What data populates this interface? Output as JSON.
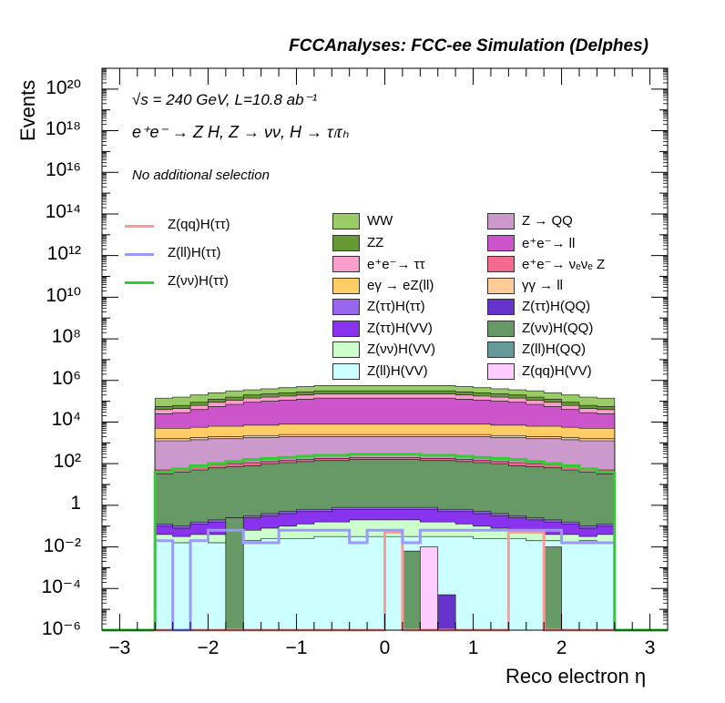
{
  "header": "FCCAnalyses: FCC-ee Simulation (Delphes)",
  "annotations": {
    "energy": "√s = 240 GeV, L=10.8 ab⁻¹",
    "process": "e⁺e⁻ → Z H, Z → νν, H → τₗτₕ",
    "selection": "No additional selection"
  },
  "colors": {
    "WW": "#99cc66",
    "ZZ": "#669933",
    "ee_tautau": "#f99fcb",
    "ee_ll": "#cc55cc",
    "ZQQ": "#cc99cc",
    "ee_nunuZ": "#f36a8e",
    "egamma": "#ffcc66",
    "gammagamma": "#ffcc99",
    "Z_tautau_H_tautau": "#9966ee",
    "Z_tautau_H_QQ": "#6633cc",
    "Z_tautau_H_VV": "#8833ee",
    "Z_nunu_H_QQ": "#669966",
    "Z_nunu_H_VV": "#ccffcc",
    "Z_ll_H_QQ": "#669999",
    "Z_ll_H_VV": "#ccffff",
    "Z_qq_H_VV": "#ffccff",
    "sig_qq": "#ff9999",
    "sig_ll": "#9999ff",
    "sig_nunu": "#33cc33"
  },
  "chart_data": {
    "type": "histogram",
    "title": "FCCAnalyses: FCC-ee Simulation (Delphes)",
    "xlabel": "Reco electron η",
    "ylabel": "Events",
    "xlim": [
      -3.2,
      3.2
    ],
    "ylim_log10": [
      -6,
      21
    ],
    "log_y": true,
    "x_ticks": [
      "−3",
      "−2",
      "−1",
      "0",
      "1",
      "2",
      "3"
    ],
    "y_ticks": [
      "10⁻⁶",
      "10⁻⁴",
      "10⁻²",
      "1",
      "10²",
      "10⁴",
      "10⁶",
      "10⁸",
      "10¹⁰",
      "10¹²",
      "10¹⁴",
      "10¹⁶",
      "10¹⁸",
      "10²⁰"
    ],
    "bin_edges": [
      -2.6,
      -2.4,
      -2.2,
      -2.0,
      -1.8,
      -1.6,
      -1.4,
      -1.2,
      -1.0,
      -0.8,
      -0.6,
      -0.4,
      -0.2,
      0.0,
      0.2,
      0.4,
      0.6,
      0.8,
      1.0,
      1.2,
      1.4,
      1.6,
      1.8,
      2.0,
      2.2,
      2.4,
      2.6
    ],
    "stack_boundaries_log10": [
      {
        "name": "Z(ll)H(VV)",
        "color_key": "Z_ll_H_VV",
        "values": [
          -1.7,
          -1.8,
          -1.7,
          -1.8,
          -1.7,
          -1.7,
          -1.6,
          -1.6,
          -1.6,
          -1.5,
          -1.5,
          -1.5,
          -1.5,
          -1.5,
          -1.5,
          -1.5,
          -1.5,
          -1.5,
          -1.6,
          -1.6,
          -1.6,
          -1.7,
          -1.7,
          -1.8,
          -1.7,
          -1.8
        ]
      },
      {
        "name": "Z(νν)H(VV)",
        "color_key": "Z_nunu_H_VV",
        "values": [
          -1.4,
          -1.5,
          -1.4,
          -1.4,
          -1.3,
          -1.2,
          -1.1,
          -1.0,
          -0.9,
          -0.8,
          -0.8,
          -0.7,
          -0.7,
          -0.7,
          -0.7,
          -0.8,
          -0.8,
          -0.9,
          -1.0,
          -1.1,
          -1.2,
          -1.3,
          -1.4,
          -1.4,
          -1.5,
          -1.4
        ]
      },
      {
        "name": "Z(ττ)H(VV)",
        "color_key": "Z_tautau_H_VV",
        "values": [
          -1.0,
          -1.1,
          -0.9,
          -0.8,
          -0.7,
          -0.6,
          -0.5,
          -0.4,
          -0.3,
          -0.3,
          -0.2,
          -0.2,
          -0.2,
          -0.2,
          -0.2,
          -0.2,
          -0.3,
          -0.3,
          -0.4,
          -0.5,
          -0.6,
          -0.7,
          -0.8,
          -0.9,
          -1.1,
          -1.0
        ]
      },
      {
        "name": "Z(ττ)H(ττ)",
        "color_key": "Z_tautau_H_tautau",
        "values": [
          -0.9,
          -1.0,
          -0.8,
          -0.7,
          -0.6,
          -0.5,
          -0.4,
          -0.3,
          -0.2,
          -0.2,
          -0.1,
          -0.1,
          -0.1,
          -0.1,
          -0.1,
          -0.1,
          -0.2,
          -0.2,
          -0.3,
          -0.4,
          -0.5,
          -0.6,
          -0.7,
          -0.8,
          -1.0,
          -0.9
        ]
      },
      {
        "name": "Z(νν)H(QQ)",
        "color_key": "Z_nunu_H_QQ",
        "values": [
          1.5,
          1.6,
          1.7,
          1.8,
          1.85,
          1.9,
          2.0,
          2.05,
          2.1,
          2.15,
          2.15,
          2.2,
          2.2,
          2.2,
          2.2,
          2.15,
          2.15,
          2.1,
          2.05,
          2.0,
          1.9,
          1.85,
          1.8,
          1.7,
          1.6,
          1.5
        ]
      },
      {
        "name": "e⁺e⁻→ νₑνₑ Z",
        "color_key": "ee_nunuZ",
        "values": [
          1.7,
          1.75,
          1.85,
          1.95,
          2.0,
          2.05,
          2.1,
          2.15,
          2.2,
          2.25,
          2.25,
          2.3,
          2.3,
          2.3,
          2.3,
          2.25,
          2.25,
          2.2,
          2.15,
          2.1,
          2.05,
          2.0,
          1.95,
          1.85,
          1.75,
          1.7
        ]
      },
      {
        "name": "Z → QQ",
        "color_key": "ZQQ",
        "values": [
          3.1,
          3.1,
          3.15,
          3.2,
          3.2,
          3.25,
          3.25,
          3.3,
          3.3,
          3.3,
          3.3,
          3.3,
          3.3,
          3.3,
          3.3,
          3.3,
          3.3,
          3.3,
          3.3,
          3.25,
          3.25,
          3.2,
          3.2,
          3.15,
          3.1,
          3.1
        ]
      },
      {
        "name": "γγ → ll",
        "color_key": "gammagamma",
        "values": [
          3.2,
          3.2,
          3.25,
          3.3,
          3.3,
          3.35,
          3.35,
          3.4,
          3.4,
          3.4,
          3.4,
          3.4,
          3.4,
          3.4,
          3.4,
          3.4,
          3.4,
          3.4,
          3.4,
          3.35,
          3.35,
          3.3,
          3.3,
          3.25,
          3.2,
          3.2
        ]
      },
      {
        "name": "eγ → eZ(ll)",
        "color_key": "egamma",
        "values": [
          3.7,
          3.7,
          3.75,
          3.8,
          3.8,
          3.85,
          3.85,
          3.9,
          3.9,
          3.9,
          3.9,
          3.9,
          3.9,
          3.9,
          3.9,
          3.9,
          3.9,
          3.9,
          3.9,
          3.85,
          3.85,
          3.8,
          3.8,
          3.75,
          3.7,
          3.7
        ]
      },
      {
        "name": "e⁺e⁻→ ll",
        "color_key": "ee_ll",
        "values": [
          4.4,
          4.45,
          4.6,
          4.75,
          4.85,
          4.95,
          5.0,
          5.05,
          5.1,
          5.15,
          5.15,
          5.15,
          5.15,
          5.15,
          5.15,
          5.15,
          5.15,
          5.1,
          5.05,
          5.0,
          4.95,
          4.85,
          4.75,
          4.6,
          4.45,
          4.4
        ]
      },
      {
        "name": "e⁺e⁻→ ττ",
        "color_key": "ee_tautau",
        "values": [
          4.6,
          4.65,
          4.8,
          4.95,
          5.05,
          5.15,
          5.2,
          5.25,
          5.3,
          5.35,
          5.35,
          5.35,
          5.35,
          5.35,
          5.35,
          5.35,
          5.35,
          5.3,
          5.25,
          5.2,
          5.15,
          5.05,
          4.95,
          4.8,
          4.65,
          4.6
        ]
      },
      {
        "name": "ZZ",
        "color_key": "ZZ",
        "values": [
          4.75,
          4.8,
          4.95,
          5.1,
          5.2,
          5.3,
          5.35,
          5.4,
          5.45,
          5.5,
          5.5,
          5.5,
          5.5,
          5.5,
          5.5,
          5.5,
          5.5,
          5.45,
          5.4,
          5.35,
          5.3,
          5.2,
          5.1,
          4.95,
          4.8,
          4.75
        ]
      },
      {
        "name": "WW",
        "color_key": "WW",
        "values": [
          5.15,
          5.2,
          5.3,
          5.4,
          5.5,
          5.55,
          5.6,
          5.65,
          5.7,
          5.75,
          5.75,
          5.75,
          5.75,
          5.75,
          5.75,
          5.75,
          5.75,
          5.7,
          5.65,
          5.6,
          5.55,
          5.5,
          5.4,
          5.3,
          5.2,
          5.15
        ]
      }
    ],
    "spikes": [
      {
        "name": "Z(νν)H(QQ)",
        "color_key": "Z_nunu_H_QQ",
        "x": [
          -1.8,
          -1.6
        ],
        "log10_top": -0.6
      },
      {
        "name": "Z(νν)H(QQ)",
        "color_key": "Z_nunu_H_QQ",
        "x": [
          0.2,
          0.4
        ],
        "log10_top": -2.2
      },
      {
        "name": "Z(νν)H(QQ)",
        "color_key": "Z_nunu_H_QQ",
        "x": [
          1.8,
          2.0
        ],
        "log10_top": -2.0
      },
      {
        "name": "Z(qq)H(VV)",
        "color_key": "Z_qq_H_VV",
        "x": [
          0.4,
          0.6
        ],
        "log10_top": -2.0
      },
      {
        "name": "Z(ττ)H(QQ)",
        "color_key": "Z_tautau_H_QQ",
        "x": [
          0.6,
          0.8
        ],
        "log10_top": -4.3
      }
    ],
    "overlay_lines": [
      {
        "name": "Z(qq)H(ττ)",
        "color_key": "sig_qq",
        "values": [
          -6.2,
          -6.2,
          -6.2,
          -6.2,
          -6.2,
          -6.2,
          -6.2,
          -6.2,
          -6.2,
          -6.2,
          -6.2,
          -6.2,
          -6.2,
          -1.3,
          -6.2,
          -6.2,
          -6.2,
          -6.2,
          -6.2,
          -6.2,
          -1.3,
          -1.3,
          -6.2,
          -6.2,
          -6.2,
          -6.2
        ]
      },
      {
        "name": "Z(ll)H(ττ)",
        "color_key": "sig_ll",
        "values": [
          -1.7,
          -6.2,
          -1.7,
          -1.2,
          -1.2,
          -1.8,
          -1.8,
          -1.2,
          -1.2,
          -1.2,
          -1.2,
          -1.8,
          -1.2,
          -1.2,
          -1.8,
          -1.2,
          -1.2,
          -1.2,
          -1.2,
          -1.2,
          -1.2,
          -1.2,
          -1.2,
          -1.8,
          -1.8,
          -1.8
        ]
      },
      {
        "name": "Z(νν)H(ττ)",
        "color_key": "sig_nunu",
        "values": [
          1.6,
          1.75,
          1.9,
          2.0,
          2.1,
          2.2,
          2.25,
          2.3,
          2.35,
          2.4,
          2.4,
          2.45,
          2.45,
          2.45,
          2.45,
          2.4,
          2.4,
          2.35,
          2.3,
          2.25,
          2.2,
          2.1,
          2.0,
          1.9,
          1.75,
          1.6
        ]
      }
    ],
    "legend_placement": "top"
  },
  "legend": {
    "lines": [
      {
        "label": "Z(qq)H(ττ)",
        "color_key": "sig_qq"
      },
      {
        "label": "Z(ll)H(ττ)",
        "color_key": "sig_ll"
      },
      {
        "label": "Z(νν)H(ττ)",
        "color_key": "sig_nunu"
      }
    ],
    "col1": [
      {
        "label": "WW",
        "color_key": "WW"
      },
      {
        "label": "ZZ",
        "color_key": "ZZ"
      },
      {
        "label": "e⁺e⁻→ ττ",
        "color_key": "ee_tautau"
      },
      {
        "label": "eγ → eZ(ll)",
        "color_key": "egamma"
      },
      {
        "label": "Z(ττ)H(ττ)",
        "color_key": "Z_tautau_H_tautau"
      },
      {
        "label": "Z(ττ)H(VV)",
        "color_key": "Z_tautau_H_VV"
      },
      {
        "label": "Z(νν)H(VV)",
        "color_key": "Z_nunu_H_VV"
      },
      {
        "label": "Z(ll)H(VV)",
        "color_key": "Z_ll_H_VV"
      }
    ],
    "col2": [
      {
        "label": "Z → QQ",
        "color_key": "ZQQ"
      },
      {
        "label": "e⁺e⁻→ ll",
        "color_key": "ee_ll"
      },
      {
        "label": "e⁺e⁻→ νₑνₑ Z",
        "color_key": "ee_nunuZ"
      },
      {
        "label": "γγ → ll",
        "color_key": "gammagamma"
      },
      {
        "label": "Z(ττ)H(QQ)",
        "color_key": "Z_tautau_H_QQ"
      },
      {
        "label": "Z(νν)H(QQ)",
        "color_key": "Z_nunu_H_QQ"
      },
      {
        "label": "Z(ll)H(QQ)",
        "color_key": "Z_ll_H_QQ"
      },
      {
        "label": "Z(qq)H(VV)",
        "color_key": "Z_qq_H_VV"
      }
    ]
  }
}
